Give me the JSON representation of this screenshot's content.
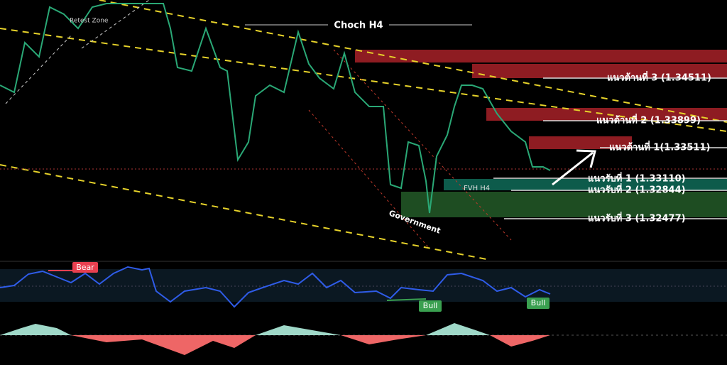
{
  "zones": {
    "retest": "Retest Zone",
    "choch": "Choch H4",
    "fvh": "FVH H4",
    "government": "Government"
  },
  "resistance": [
    "แนวต้านที่ 3 (1.34511)",
    "แนวต้านที่ 2 (1.33899)",
    "แนวต้านที่ 1(1.33511)"
  ],
  "support": [
    "แนวรับที่ 1 (1.33110)",
    "แนวรับที่ 2 (1.32844)",
    "แนวรับที่ 3 (1.32477)"
  ],
  "oscillator": {
    "bear": "Bear",
    "bull_1": "Bull",
    "bull_2": "Bull"
  }
}
